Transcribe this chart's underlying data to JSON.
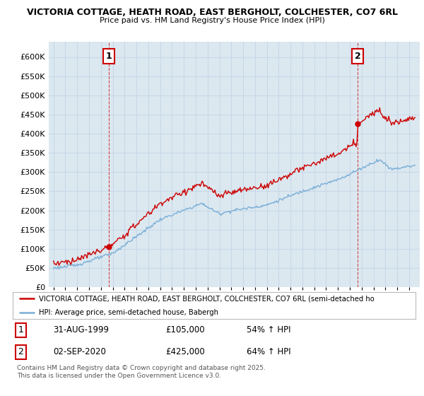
{
  "title1": "VICTORIA COTTAGE, HEATH ROAD, EAST BERGHOLT, COLCHESTER, CO7 6RL",
  "title2": "Price paid vs. HM Land Registry's House Price Index (HPI)",
  "legend_red": "VICTORIA COTTAGE, HEATH ROAD, EAST BERGHOLT, COLCHESTER, CO7 6RL (semi-detached ho",
  "legend_blue": "HPI: Average price, semi-detached house, Babergh",
  "annotation1_date": "31-AUG-1999",
  "annotation1_price": "£105,000",
  "annotation1_hpi": "54% ↑ HPI",
  "annotation2_date": "02-SEP-2020",
  "annotation2_price": "£425,000",
  "annotation2_hpi": "64% ↑ HPI",
  "footer": "Contains HM Land Registry data © Crown copyright and database right 2025.\nThis data is licensed under the Open Government Licence v3.0.",
  "red_color": "#cc0000",
  "blue_color": "#7aaed6",
  "grid_color": "#c8d8e8",
  "bg_color": "#dce8f0",
  "plot_bg": "#dce8f0",
  "ylim": [
    0,
    640000
  ],
  "yticks": [
    0,
    50000,
    100000,
    150000,
    200000,
    250000,
    300000,
    350000,
    400000,
    450000,
    500000,
    550000,
    600000
  ],
  "sale1_year": 1999.67,
  "sale1_price": 105000,
  "sale2_year": 2020.67,
  "sale2_price": 425000
}
